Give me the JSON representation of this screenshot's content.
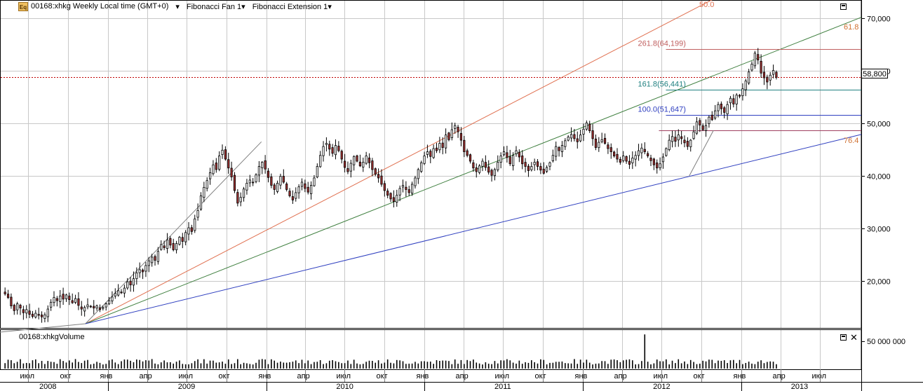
{
  "header": {
    "icon_label": "Eq",
    "symbol_info": "00168:xhkg Weekly Local time (GMT+0)",
    "fan_label": "Fibonacci Fan 1",
    "ext_label": "Fibonacci Extension 1",
    "volume_title": "00168:xhkgVolume"
  },
  "price_tag": "58,800",
  "colors": {
    "up_candle": "#ffffff",
    "down_candle": "#a03030",
    "grid": "#c8c8c8",
    "fan_gray": "#808080",
    "fan_red": "#e07050",
    "fan_green": "#408040",
    "fan_blue": "#3040c0",
    "ext_red": "#c06060",
    "ext_teal": "#208080",
    "ext_blue": "#3040c0",
    "ext_magenta": "#a04060",
    "price_line": "#c00000"
  },
  "icons": [
    "maximize-icon",
    "close-icon"
  ],
  "chart_data": {
    "type": "candlestick",
    "ylim": [
      11000,
      73000
    ],
    "yticks": [
      20000,
      30000,
      40000,
      50000,
      60000,
      70000
    ],
    "ytick_labels": [
      "20,000",
      "30,000",
      "40,000",
      "50,000",
      "60,000",
      "70,000"
    ],
    "x_start": "2008-05-05",
    "x_end": "2013-09-30",
    "month_ticks": [
      {
        "date": "2008-07-01",
        "label": "июл"
      },
      {
        "date": "2008-10-01",
        "label": "окт"
      },
      {
        "date": "2009-01-01",
        "label": "янв"
      },
      {
        "date": "2009-04-01",
        "label": "апр"
      },
      {
        "date": "2009-07-01",
        "label": "июл"
      },
      {
        "date": "2009-10-01",
        "label": "окт"
      },
      {
        "date": "2010-01-01",
        "label": "янв"
      },
      {
        "date": "2010-04-01",
        "label": "апр"
      },
      {
        "date": "2010-07-01",
        "label": "июл"
      },
      {
        "date": "2010-10-01",
        "label": "окт"
      },
      {
        "date": "2011-01-01",
        "label": "янв"
      },
      {
        "date": "2011-04-01",
        "label": "апр"
      },
      {
        "date": "2011-07-01",
        "label": "июл"
      },
      {
        "date": "2011-10-01",
        "label": "окт"
      },
      {
        "date": "2012-01-01",
        "label": "янв"
      },
      {
        "date": "2012-04-01",
        "label": "апр"
      },
      {
        "date": "2012-07-01",
        "label": "июл"
      },
      {
        "date": "2012-10-01",
        "label": "окт"
      },
      {
        "date": "2013-01-01",
        "label": "янв"
      },
      {
        "date": "2013-04-01",
        "label": "апр"
      },
      {
        "date": "2013-07-01",
        "label": "июл"
      }
    ],
    "year_labels": [
      {
        "date": "2008-08-15",
        "label": "2008"
      },
      {
        "date": "2009-07-01",
        "label": "2009"
      },
      {
        "date": "2010-07-01",
        "label": "2010"
      },
      {
        "date": "2011-07-01",
        "label": "2011"
      },
      {
        "date": "2012-07-01",
        "label": "2012"
      },
      {
        "date": "2013-05-15",
        "label": "2013"
      }
    ],
    "year_boundaries": [
      "2009-01-01",
      "2010-01-01",
      "2011-01-01",
      "2012-01-01",
      "2013-01-01"
    ],
    "closes": [
      17500,
      16800,
      15200,
      14300,
      15600,
      14800,
      13900,
      14500,
      13600,
      13200,
      13800,
      13400,
      13100,
      13500,
      14600,
      15900,
      16800,
      16200,
      17100,
      16500,
      17300,
      16400,
      15800,
      16600,
      15300,
      14600,
      14900,
      15400,
      15100,
      14800,
      15200,
      14500,
      14900,
      15600,
      16200,
      16900,
      17600,
      18100,
      17700,
      18600,
      19800,
      19200,
      20400,
      21500,
      22100,
      21700,
      22900,
      23800,
      24500,
      23900,
      25600,
      26900,
      26300,
      27800,
      26800,
      25900,
      27100,
      28300,
      27500,
      29200,
      30100,
      29400,
      31800,
      33400,
      36200,
      37800,
      39100,
      40600,
      42100,
      41200,
      43800,
      44900,
      43200,
      41500,
      39800,
      37200,
      34800,
      35900,
      37500,
      38600,
      39200,
      38800,
      40200,
      41800,
      42600,
      41300,
      39700,
      38200,
      37400,
      38600,
      39900,
      38800,
      37400,
      36200,
      35400,
      36800,
      37900,
      38800,
      37600,
      36900,
      38200,
      39600,
      41800,
      43900,
      45600,
      46200,
      45100,
      44300,
      45800,
      44800,
      43200,
      41600,
      40800,
      42400,
      43700,
      42800,
      41900,
      42600,
      43800,
      42500,
      41200,
      40300,
      39600,
      38400,
      37200,
      36300,
      35600,
      35100,
      36300,
      37600,
      38200,
      37400,
      36800,
      38400,
      39600,
      41200,
      42500,
      43800,
      44600,
      43700,
      45200,
      44800,
      46200,
      45400,
      47800,
      46900,
      48800,
      49600,
      48400,
      46800,
      44600,
      43900,
      42800,
      41500,
      40800,
      41900,
      42800,
      41600,
      40700,
      40100,
      41200,
      42600,
      43800,
      44600,
      43500,
      42300,
      43900,
      44800,
      43600,
      42300,
      41800,
      41000,
      41800,
      42600,
      41800,
      41100,
      40500,
      41600,
      42500,
      43900,
      45600,
      44800,
      45800,
      46700,
      47400,
      47900,
      47100,
      46500,
      47800,
      48900,
      50100,
      48600,
      47100,
      45400,
      46400,
      46900,
      46200,
      45200,
      44600,
      43800,
      43200,
      42600,
      43800,
      42800,
      42200,
      43400,
      43900,
      44800,
      45300,
      44600,
      43800,
      42900,
      42100,
      41500,
      42300,
      43600,
      45200,
      46800,
      47500,
      46600,
      47800,
      47100,
      46300,
      45600,
      46800,
      48400,
      50300,
      49700,
      48800,
      49600,
      51200,
      50700,
      52400,
      53600,
      52800,
      52100,
      53600,
      54800,
      53700,
      55400,
      55200,
      56600,
      58100,
      59800,
      61300,
      63400,
      62100,
      59600,
      58700,
      57900,
      59200,
      60100,
      58800
    ],
    "vol_max_label": "50 000 000",
    "vol_ticks": [
      50000000
    ],
    "volume_spike_date": "2012-05-21",
    "drawings": {
      "fan": {
        "origin": {
          "date": "2008-11-10",
          "value": 11800
        },
        "anchor": {
          "date": "2009-12-21",
          "value": 46500
        },
        "labels": {
          "red": "50.0",
          "green": "61.8",
          "blue": "76.4"
        }
      },
      "extension": {
        "levels": [
          {
            "label": "261.8(64,199)",
            "value": 64199,
            "color_key": "ext_red"
          },
          {
            "label": "161.8(56,441)",
            "value": 56441,
            "color_key": "ext_teal"
          },
          {
            "label": "100.0(51,647)",
            "value": 51647,
            "color_key": "ext_blue"
          }
        ],
        "base_value": 48700,
        "start_date": "2012-06-25",
        "tri_points": [
          {
            "date": "2012-09-03",
            "value": 40000
          },
          {
            "date": "2012-10-29",
            "value": 48700
          }
        ]
      },
      "current_price": 58800
    }
  }
}
